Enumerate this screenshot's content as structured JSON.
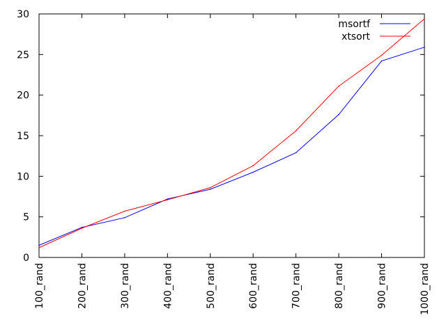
{
  "chart_data": {
    "type": "line",
    "title": "",
    "xlabel": "",
    "ylabel": "",
    "categories": [
      "100_rand",
      "200_rand",
      "300_rand",
      "400_rand",
      "500_rand",
      "600_rand",
      "700_rand",
      "800_rand",
      "900_rand",
      "1000_rand"
    ],
    "ylim": [
      0,
      30
    ],
    "yticks": [
      0,
      5,
      10,
      15,
      20,
      25,
      30
    ],
    "grid": false,
    "legend_position": "top-right",
    "series": [
      {
        "name": "msortf",
        "color": "#0000ff",
        "values": [
          1.5,
          3.7,
          4.9,
          7.2,
          8.4,
          10.5,
          12.9,
          17.6,
          24.2,
          25.9
        ]
      },
      {
        "name": "xtsort",
        "color": "#ff0000",
        "values": [
          1.2,
          3.6,
          5.7,
          7.1,
          8.6,
          11.3,
          15.6,
          21.1,
          24.9,
          29.4
        ]
      }
    ]
  }
}
